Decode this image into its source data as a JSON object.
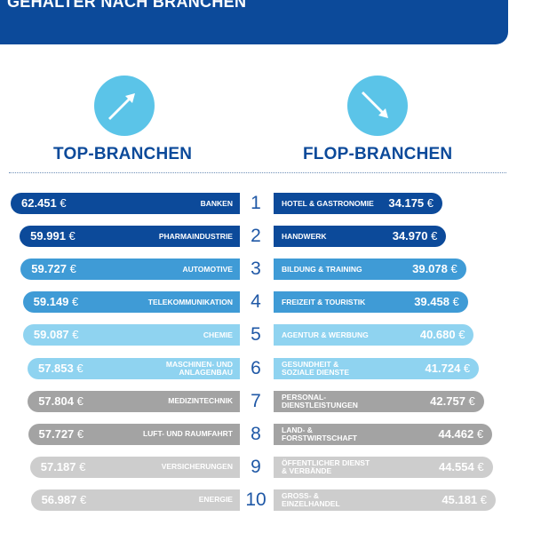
{
  "header": {
    "title": "GEHÄLTER NACH BRANCHEN"
  },
  "columns": {
    "top_title": "TOP-BRANCHEN",
    "flop_title": "FLOP-BRANCHEN"
  },
  "icons": {
    "top_arrow": "arrow-up-right-icon",
    "flop_arrow": "arrow-down-right-icon"
  },
  "colors": {
    "header": "#0c4a9a",
    "arrow": "#5bc4e8",
    "title": "#0c4a9a"
  },
  "chart_data": {
    "type": "bar",
    "currency": "€",
    "ranks": [
      "1",
      "2",
      "3",
      "4",
      "5",
      "6",
      "7",
      "8",
      "9",
      "10"
    ],
    "series": [
      {
        "name": "TOP-BRANCHEN",
        "categories": [
          "BANKEN",
          "PHARMAINDUSTRIE",
          "AUTOMOTIVE",
          "TELEKOMMUNIKATION",
          "CHEMIE",
          "MASCHINEN- UND ANLAGENBAU",
          "MEDIZINTECHNIK",
          "LUFT- UND RAUMFAHRT",
          "VERSICHERUNGEN",
          "ENERGIE"
        ],
        "value_labels": [
          "62.451",
          "59.991",
          "59.727",
          "59.149",
          "59.087",
          "57.853",
          "57.804",
          "57.727",
          "57.187",
          "56.987"
        ],
        "values": [
          62451,
          59991,
          59727,
          59149,
          59087,
          57853,
          57804,
          57727,
          57187,
          56987
        ]
      },
      {
        "name": "FLOP-BRANCHEN",
        "categories": [
          "HOTEL & GASTRONOMIE",
          "HANDWERK",
          "BILDUNG & TRAINING",
          "FREIZEIT & TOURISTIK",
          "AGENTUR & WERBUNG",
          "GESUNDHEIT & SOZIALE DIENSTE",
          "PERSONAL-DIENSTLEISTUNGEN",
          "LAND- & FORSTWIRTSCHAFT",
          "ÖFFENTLICHER DIENST & VERBÄNDE",
          "GROSS- & EINZELHANDEL"
        ],
        "value_labels": [
          "34.175",
          "34.970",
          "39.078",
          "39.458",
          "40.680",
          "41.724",
          "42.757",
          "44.462",
          "44.554",
          "45.181"
        ],
        "values": [
          34175,
          34970,
          39078,
          39458,
          40680,
          41724,
          42757,
          44462,
          44554,
          45181
        ]
      }
    ],
    "row_colors": [
      "#0c4a9a",
      "#0c4a9a",
      "#3f9bd6",
      "#3f9bd6",
      "#8fd3f0",
      "#8fd3f0",
      "#a3a3a3",
      "#a3a3a3",
      "#cdcdcd",
      "#cdcdcd"
    ]
  }
}
